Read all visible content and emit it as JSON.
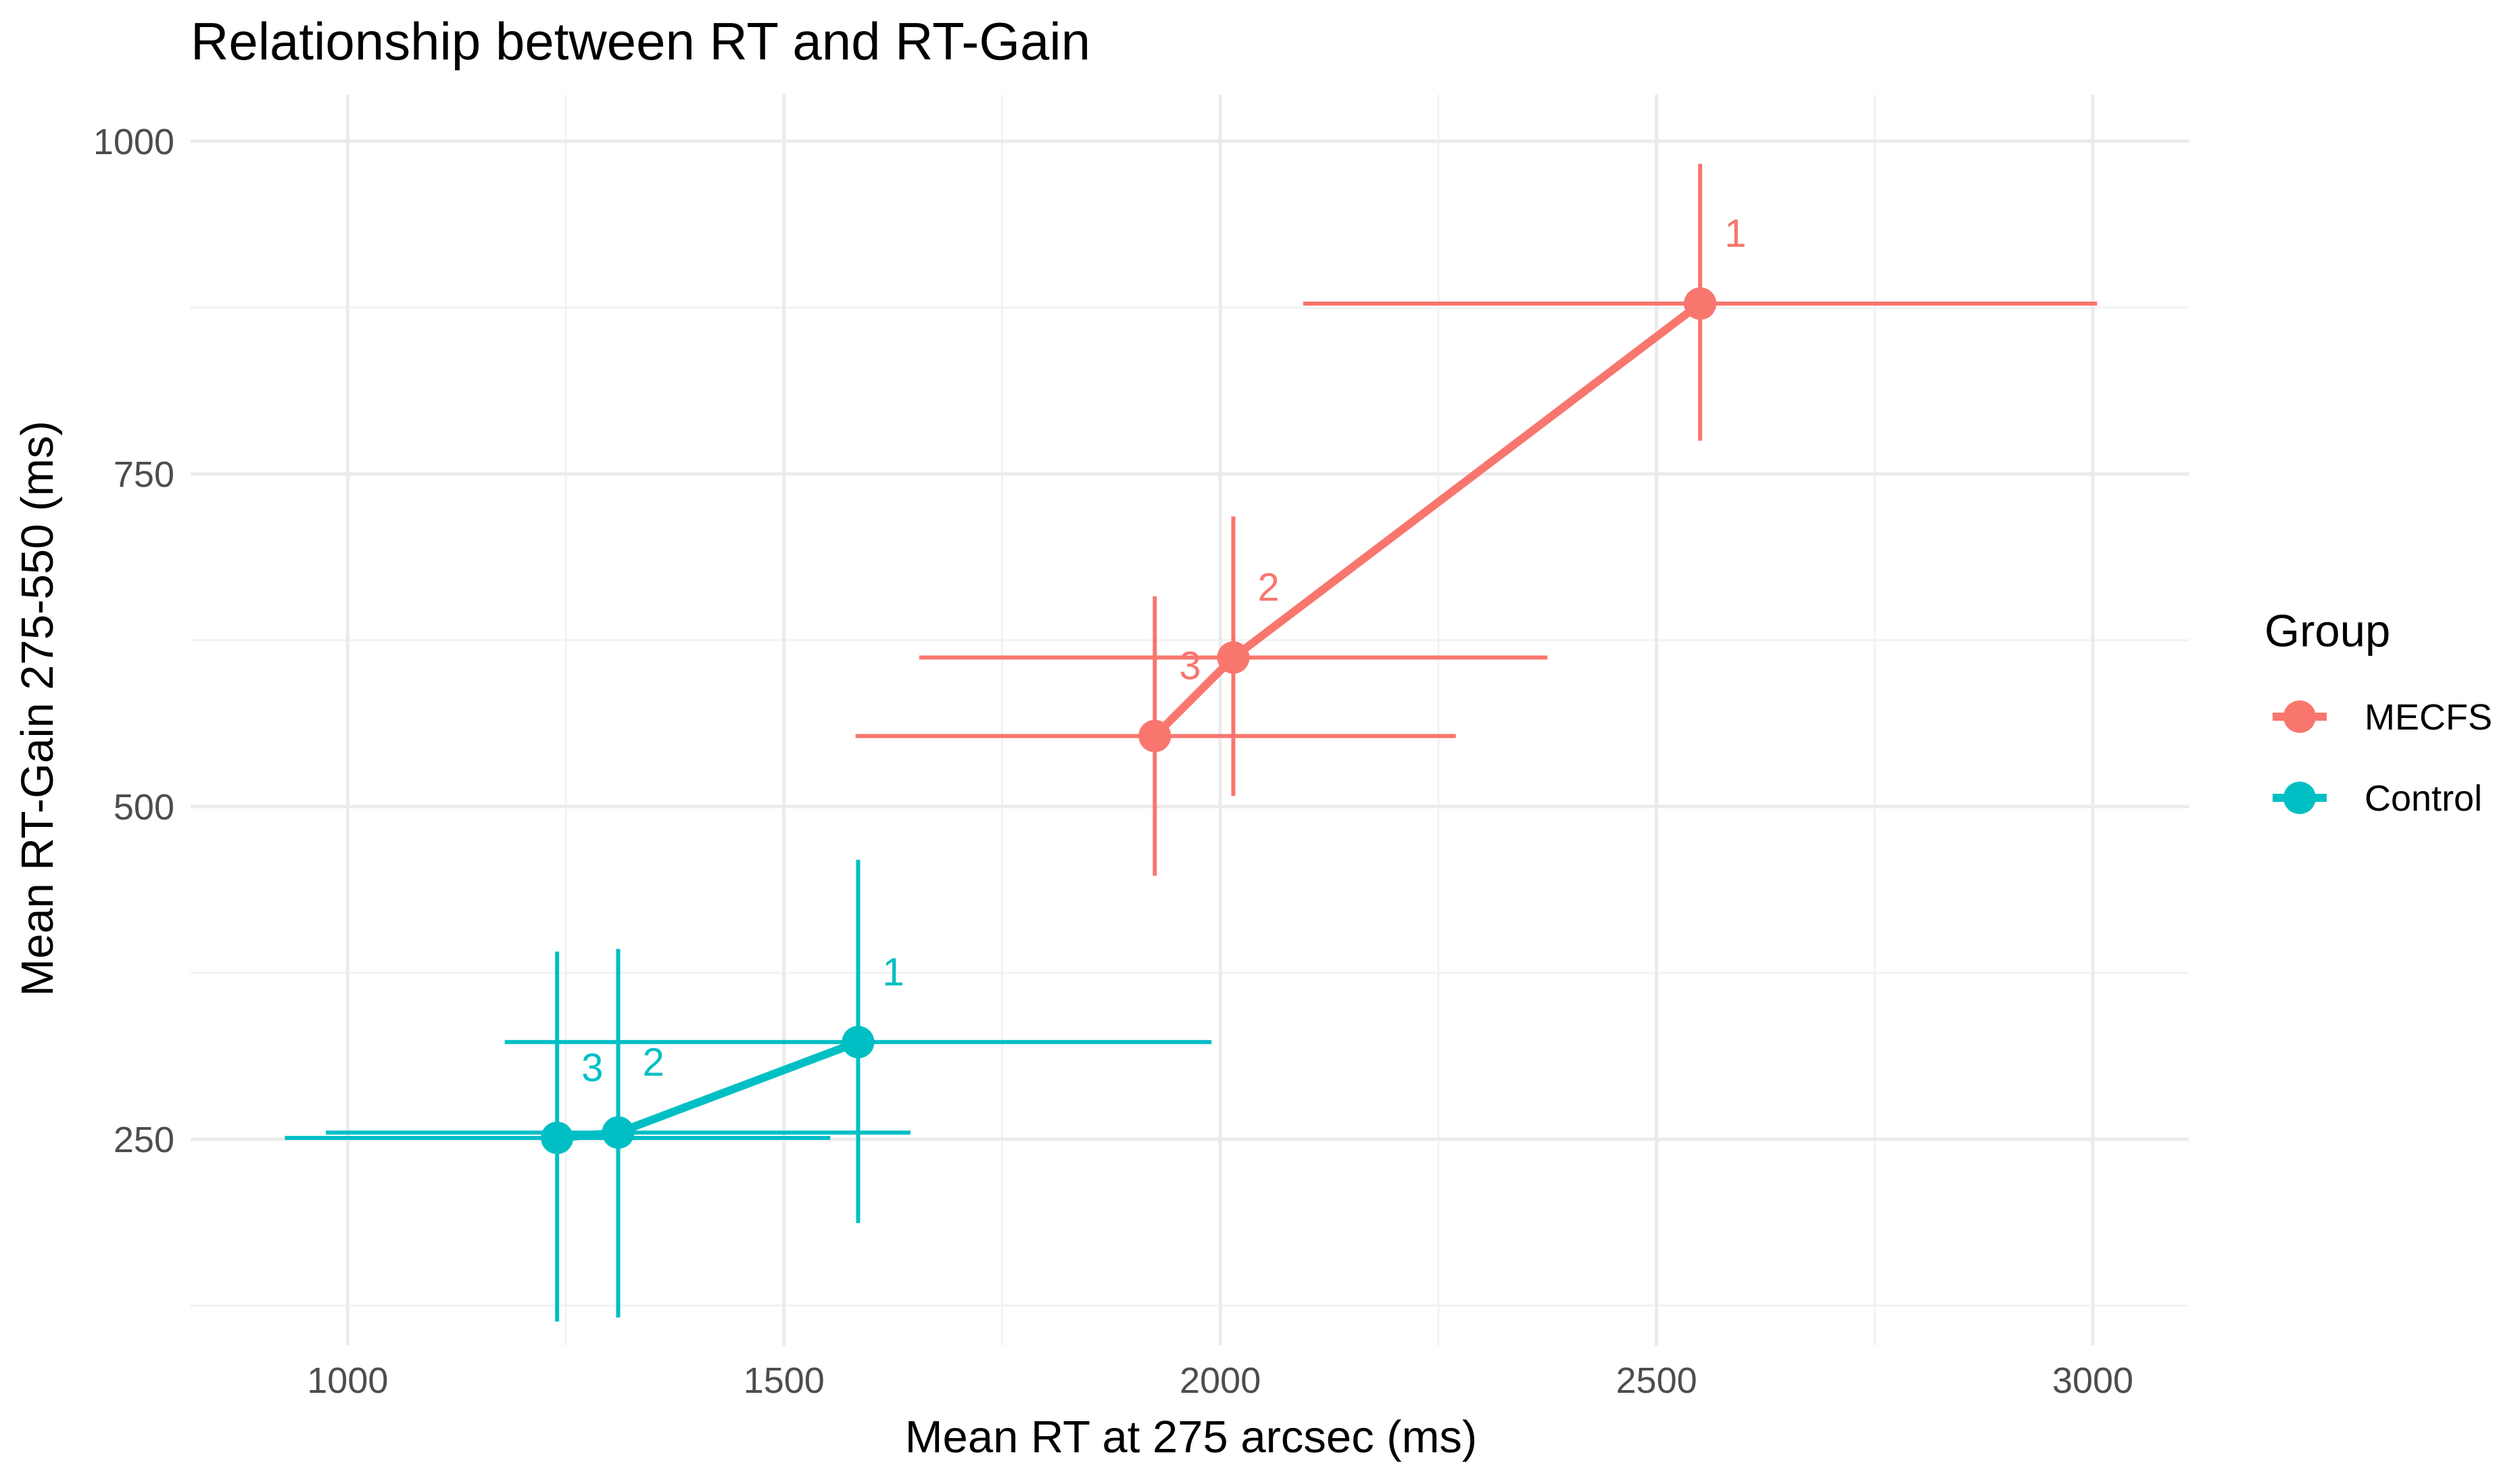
{
  "chart_data": {
    "type": "line",
    "title": "Relationship between RT and RT-Gain",
    "xlabel": "Mean RT at 275 arcsec (ms)",
    "ylabel": "Mean RT-Gain 275-550 (ms)",
    "xlim": [
      820,
      3110
    ],
    "ylim": [
      95,
      1035
    ],
    "x_ticks": [
      1000,
      1500,
      2000,
      2500,
      3000
    ],
    "y_ticks": [
      250,
      500,
      750,
      1000
    ],
    "x_tick_labels": [
      "1000",
      "1500",
      "2000",
      "2500",
      "3000"
    ],
    "y_tick_labels": [
      "250",
      "500",
      "750",
      "1000"
    ],
    "grid": true,
    "legend": {
      "title": "Group",
      "position": "right"
    },
    "series": [
      {
        "name": "MECFS",
        "color": "#F8766D",
        "points": [
          {
            "label": "1",
            "x": 2550,
            "y": 878,
            "x_err": [
              2095,
              3005
            ],
            "y_err": [
              775,
              983
            ]
          },
          {
            "label": "2",
            "x": 2015,
            "y": 612,
            "x_err": [
              1655,
              2375
            ],
            "y_err": [
              508,
              718
            ]
          },
          {
            "label": "3",
            "x": 1925,
            "y": 553,
            "x_err": [
              1582,
              2270
            ],
            "y_err": [
              448,
              658
            ]
          }
        ]
      },
      {
        "name": "Control",
        "color": "#00BFC4",
        "points": [
          {
            "label": "1",
            "x": 1585,
            "y": 323,
            "x_err": [
              1180,
              1990
            ],
            "y_err": [
              187,
              460
            ]
          },
          {
            "label": "2",
            "x": 1310,
            "y": 255,
            "x_err": [
              975,
              1645
            ],
            "y_err": [
              116,
              393
            ]
          },
          {
            "label": "3",
            "x": 1240,
            "y": 251,
            "x_err": [
              928,
              1553
            ],
            "y_err": [
              113,
              391
            ]
          }
        ]
      }
    ]
  }
}
